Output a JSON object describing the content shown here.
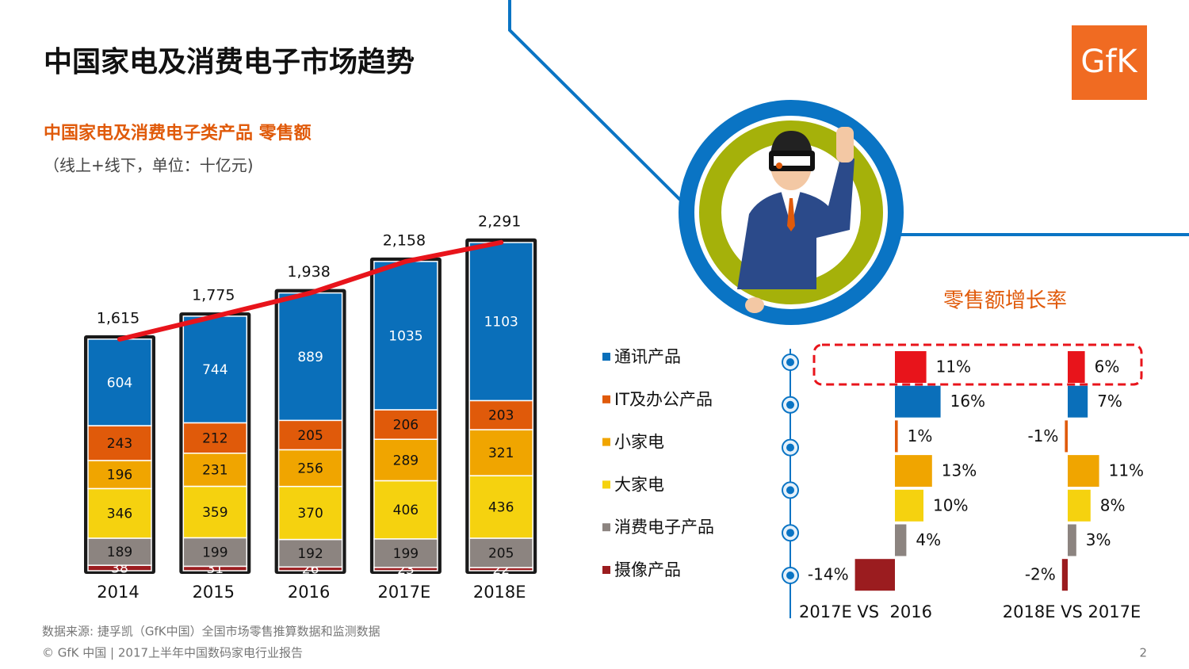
{
  "header": {
    "title": "中国家电及消费电子市场趋势",
    "logo": "GfK"
  },
  "chart_data": [
    {
      "type": "stacked_bar",
      "title": "中国家电及消费电子类产品 零售额",
      "subtitle": "（线上+线下，单位：十亿元)",
      "categories": [
        "2014",
        "2015",
        "2016",
        "2017E",
        "2018E"
      ],
      "series": [
        {
          "name": "摄像产品",
          "color": "#9b1c1f",
          "values": [
            38,
            31,
            26,
            23,
            22
          ]
        },
        {
          "name": "消费电子产品",
          "color": "#8c8480",
          "values": [
            189,
            199,
            192,
            199,
            205
          ]
        },
        {
          "name": "大家电",
          "color": "#f5d20f",
          "values": [
            346,
            359,
            370,
            406,
            436
          ]
        },
        {
          "name": "小家电",
          "color": "#f0a500",
          "values": [
            196,
            231,
            256,
            289,
            321
          ]
        },
        {
          "name": "IT及办公产品",
          "color": "#e05a0a",
          "values": [
            243,
            212,
            205,
            206,
            203
          ]
        },
        {
          "name": "通讯产品",
          "color": "#0a6fba",
          "values": [
            604,
            744,
            889,
            1035,
            1103
          ]
        }
      ],
      "total": {
        "color": "#e8141b",
        "values": [
          1615,
          1775,
          1938,
          2158,
          2291
        ],
        "value_labels": [
          "1,615",
          "1,775",
          "1,938",
          "2,158",
          "2,291"
        ]
      }
    },
    {
      "type": "hbar",
      "title": "零售额增长率",
      "colors": [
        "#e8141b",
        "#0a6fba",
        "#e05a0a",
        "#f0a500",
        "#f5d20f",
        "#8c8480",
        "#9b1c1f"
      ],
      "series": [
        {
          "name": "2017E VS  2016",
          "values": [
            11,
            16,
            1,
            13,
            10,
            4,
            -14
          ],
          "value_labels": [
            "11%",
            "16%",
            "1%",
            "13%",
            "10%",
            "4%",
            "-14%"
          ]
        },
        {
          "name": "2018E VS 2017E",
          "values": [
            6,
            7,
            -1,
            11,
            8,
            3,
            -2
          ],
          "value_labels": [
            "6%",
            "7%",
            "-1%",
            "11%",
            "8%",
            "3%",
            "-2%"
          ]
        }
      ]
    }
  ],
  "footer": {
    "source": "数据来源: 捷孚凯（GfK中国）全国市场零售推算数据和监测数据",
    "copyright": "© GfK 中国 | 2017上半年中国数码家电行业报告",
    "page": "2"
  }
}
